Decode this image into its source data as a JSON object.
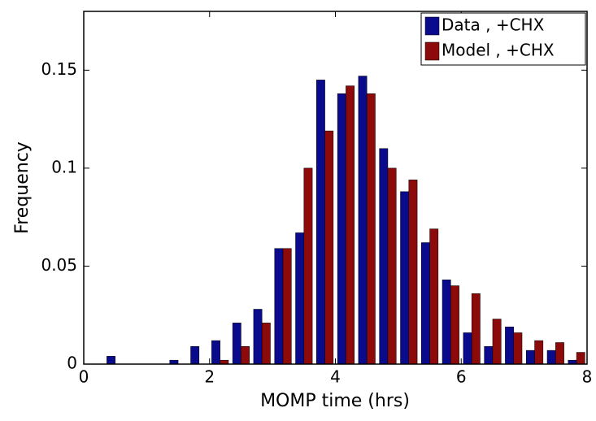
{
  "chart_data": {
    "type": "bar",
    "xlabel": "MOMP time (hrs)",
    "ylabel": "Frequency",
    "x": [
      0.5,
      0.833,
      1.167,
      1.5,
      1.833,
      2.167,
      2.5,
      2.833,
      3.167,
      3.5,
      3.833,
      4.167,
      4.5,
      4.833,
      5.167,
      5.5,
      5.833,
      6.167,
      6.5,
      6.833,
      7.167,
      7.5,
      7.833
    ],
    "series": [
      {
        "name": "Data , +CHX",
        "color": "#0a0a8c",
        "values": [
          0.004,
          0,
          0,
          0.002,
          0.009,
          0.012,
          0.021,
          0.028,
          0.059,
          0.067,
          0.145,
          0.138,
          0.147,
          0.11,
          0.088,
          0.062,
          0.043,
          0.016,
          0.009,
          0.019,
          0.007,
          0.007,
          0.002
        ]
      },
      {
        "name": "Model , +CHX",
        "color": "#8c0a0a",
        "values": [
          0,
          0,
          0,
          0,
          0,
          0.002,
          0.009,
          0.021,
          0.059,
          0.1,
          0.119,
          0.142,
          0.138,
          0.1,
          0.094,
          0.069,
          0.04,
          0.036,
          0.023,
          0.016,
          0.012,
          0.011,
          0.006
        ]
      }
    ],
    "xlim": [
      0,
      8
    ],
    "xticks": [
      0,
      2,
      4,
      6,
      8
    ],
    "ylim": [
      0,
      0.18
    ],
    "yticks": [
      0,
      0.05,
      0.1,
      0.15
    ],
    "legend": "top-right",
    "grid": false
  }
}
